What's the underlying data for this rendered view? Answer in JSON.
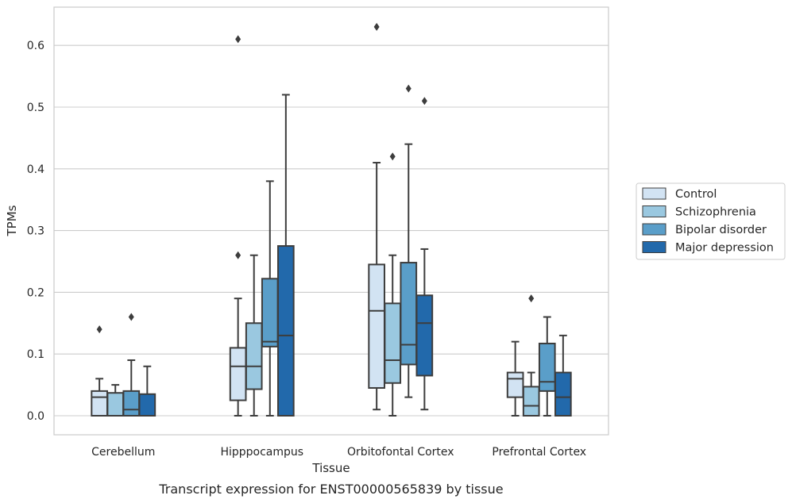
{
  "caption": "Transcript expression for ENST00000565839 by tissue",
  "chart_data": {
    "type": "box",
    "xlabel": "Tissue",
    "ylabel": "TPMs",
    "ylim": [
      -0.03,
      0.66
    ],
    "yticks": [
      "0.0",
      "0.1",
      "0.2",
      "0.3",
      "0.4",
      "0.5",
      "0.6"
    ],
    "ytick_values": [
      0.0,
      0.1,
      0.2,
      0.3,
      0.4,
      0.5,
      0.6
    ],
    "grid": "horizontal",
    "legend_position": "right",
    "categories": [
      "Cerebellum",
      "Hipppocampus",
      "Orbitofontal Cortex",
      "Prefrontal Cortex"
    ],
    "series": [
      {
        "name": "Control",
        "color": "#d2e3f3",
        "boxes": [
          {
            "whislo": 0.0,
            "q1": 0.0,
            "med": 0.03,
            "q3": 0.04,
            "whishi": 0.06,
            "fliers": [
              0.14
            ]
          },
          {
            "whislo": 0.0,
            "q1": 0.025,
            "med": 0.08,
            "q3": 0.11,
            "whishi": 0.19,
            "fliers": [
              0.26,
              0.61
            ]
          },
          {
            "whislo": 0.01,
            "q1": 0.045,
            "med": 0.17,
            "q3": 0.245,
            "whishi": 0.41,
            "fliers": [
              0.63
            ]
          },
          {
            "whislo": 0.0,
            "q1": 0.03,
            "med": 0.06,
            "q3": 0.07,
            "whishi": 0.12,
            "fliers": []
          }
        ]
      },
      {
        "name": "Schizophrenia",
        "color": "#9ac8e0",
        "boxes": [
          {
            "whislo": 0.0,
            "q1": 0.0,
            "med": 0.0,
            "q3": 0.037,
            "whishi": 0.05,
            "fliers": []
          },
          {
            "whislo": 0.0,
            "q1": 0.043,
            "med": 0.08,
            "q3": 0.15,
            "whishi": 0.26,
            "fliers": []
          },
          {
            "whislo": 0.0,
            "q1": 0.053,
            "med": 0.09,
            "q3": 0.182,
            "whishi": 0.26,
            "fliers": [
              0.42
            ]
          },
          {
            "whislo": 0.0,
            "q1": 0.0,
            "med": 0.016,
            "q3": 0.047,
            "whishi": 0.07,
            "fliers": [
              0.19
            ]
          }
        ]
      },
      {
        "name": "Bipolar disorder",
        "color": "#5a9ec9",
        "boxes": [
          {
            "whislo": 0.0,
            "q1": 0.0,
            "med": 0.01,
            "q3": 0.04,
            "whishi": 0.09,
            "fliers": [
              0.16
            ]
          },
          {
            "whislo": 0.0,
            "q1": 0.112,
            "med": 0.12,
            "q3": 0.222,
            "whishi": 0.38,
            "fliers": []
          },
          {
            "whislo": 0.03,
            "q1": 0.083,
            "med": 0.115,
            "q3": 0.248,
            "whishi": 0.44,
            "fliers": [
              0.53
            ]
          },
          {
            "whislo": 0.0,
            "q1": 0.04,
            "med": 0.055,
            "q3": 0.117,
            "whishi": 0.16,
            "fliers": []
          }
        ]
      },
      {
        "name": "Major depression",
        "color": "#2269ab",
        "boxes": [
          {
            "whislo": 0.0,
            "q1": 0.0,
            "med": 0.0,
            "q3": 0.035,
            "whishi": 0.08,
            "fliers": []
          },
          {
            "whislo": 0.0,
            "q1": 0.0,
            "med": 0.13,
            "q3": 0.275,
            "whishi": 0.52,
            "fliers": []
          },
          {
            "whislo": 0.01,
            "q1": 0.065,
            "med": 0.15,
            "q3": 0.195,
            "whishi": 0.27,
            "fliers": [
              0.51
            ]
          },
          {
            "whislo": 0.0,
            "q1": 0.0,
            "med": 0.03,
            "q3": 0.07,
            "whishi": 0.13,
            "fliers": []
          }
        ]
      }
    ]
  }
}
